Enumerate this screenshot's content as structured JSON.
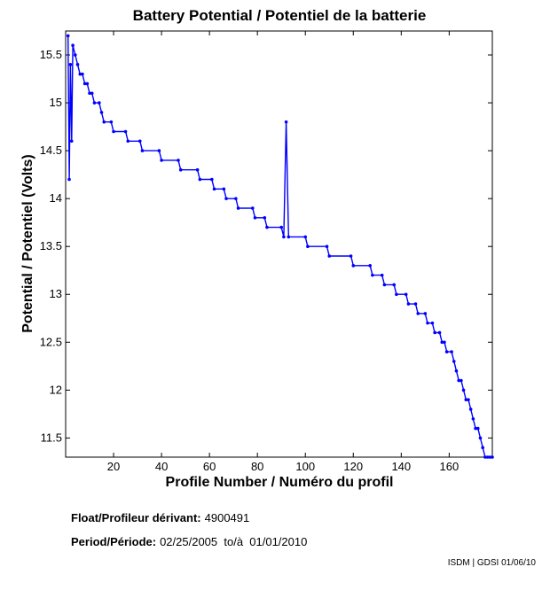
{
  "chart_data": {
    "type": "line",
    "title": "Battery Potential / Potentiel de la batterie",
    "xlabel": "Profile Number / Numéro du profil",
    "ylabel": "Potential / Potentiel (Volts)",
    "xlim": [
      0,
      178
    ],
    "ylim": [
      11.3,
      15.75
    ],
    "x_ticks": [
      20,
      40,
      60,
      80,
      100,
      120,
      140,
      160
    ],
    "y_ticks": [
      11.5,
      12,
      12.5,
      13,
      13.5,
      14,
      14.5,
      15,
      15.5
    ],
    "grid": false,
    "series_color": "#0000ff",
    "series": [
      {
        "x": [
          1,
          1.5,
          2,
          2.5,
          3,
          4,
          5,
          6,
          7,
          8,
          9,
          10,
          11,
          12,
          14,
          15,
          16,
          19,
          20,
          25,
          26,
          31,
          32,
          39,
          40,
          47,
          48,
          55,
          56,
          61,
          62,
          66,
          67,
          71,
          72,
          78,
          79,
          83,
          84,
          90,
          91,
          92,
          93,
          100,
          101,
          109,
          110,
          119,
          120,
          127,
          128,
          132,
          133,
          137,
          138,
          142,
          143,
          146,
          147,
          150,
          151,
          153,
          154,
          156,
          157,
          158,
          159,
          161,
          162,
          163,
          164,
          165,
          166,
          167,
          168,
          169,
          170,
          171,
          172,
          173,
          174,
          175,
          176,
          177,
          178
        ],
        "y": [
          15.7,
          14.2,
          15.4,
          14.6,
          15.6,
          15.5,
          15.4,
          15.3,
          15.3,
          15.2,
          15.2,
          15.1,
          15.1,
          15.0,
          15.0,
          14.9,
          14.8,
          14.8,
          14.7,
          14.7,
          14.6,
          14.6,
          14.5,
          14.5,
          14.4,
          14.4,
          14.3,
          14.3,
          14.2,
          14.2,
          14.1,
          14.1,
          14.0,
          14.0,
          13.9,
          13.9,
          13.8,
          13.8,
          13.7,
          13.7,
          13.6,
          14.8,
          13.6,
          13.6,
          13.5,
          13.5,
          13.4,
          13.4,
          13.3,
          13.3,
          13.2,
          13.2,
          13.1,
          13.1,
          13.0,
          13.0,
          12.9,
          12.9,
          12.8,
          12.8,
          12.7,
          12.7,
          12.6,
          12.6,
          12.5,
          12.5,
          12.4,
          12.4,
          12.3,
          12.2,
          12.1,
          12.1,
          12.0,
          11.9,
          11.9,
          11.8,
          11.7,
          11.6,
          11.6,
          11.5,
          11.4,
          11.3,
          11.3,
          11.3,
          11.3
        ]
      }
    ]
  },
  "info": {
    "float_label": "Float/Profileur dérivant:",
    "float_value": "4900491",
    "period_label": "Period/Période:",
    "period_value": "02/25/2005  to/à  01/01/2010"
  },
  "footer": "ISDM | GDSI 01/06/10"
}
